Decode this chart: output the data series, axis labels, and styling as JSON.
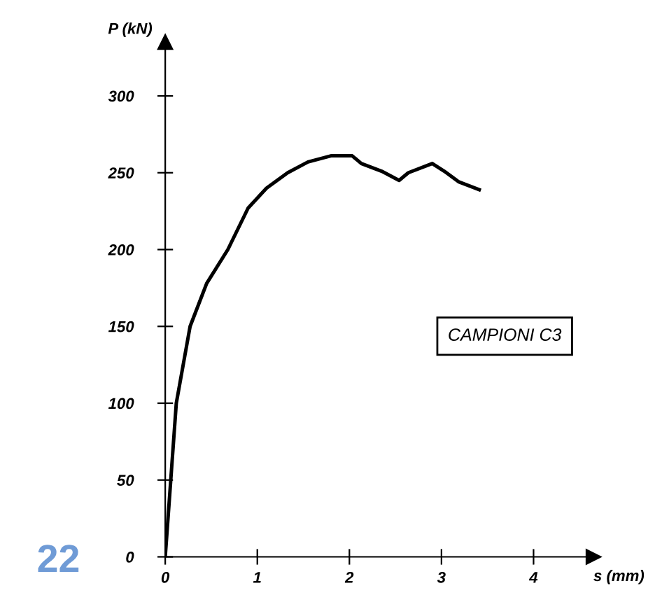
{
  "chart_data": {
    "type": "line",
    "xlabel": "s (mm)",
    "ylabel": "P (kN)",
    "x": [
      0,
      0.12,
      0.27,
      0.45,
      0.68,
      0.9,
      1.1,
      1.33,
      1.55,
      1.8,
      2.03,
      2.13,
      2.35,
      2.54,
      2.64,
      2.9,
      3.03,
      3.19,
      3.41
    ],
    "series": [
      {
        "color": "#000000",
        "values": [
          0,
          100,
          150,
          178,
          200,
          227,
          240,
          250,
          257,
          261,
          261,
          256,
          251,
          245,
          250,
          256,
          251,
          244,
          239
        ]
      }
    ],
    "xlim": [
      0,
      4.65
    ],
    "ylim": [
      0,
      335
    ],
    "xticks": [
      0,
      1,
      2,
      3,
      4
    ],
    "yticks": [
      0,
      50,
      100,
      150,
      200,
      250,
      300
    ],
    "grid": false,
    "legend": false,
    "marker": "none",
    "line_style": "solid",
    "annotations": [
      "CAMPIONI C3",
      "22"
    ]
  }
}
